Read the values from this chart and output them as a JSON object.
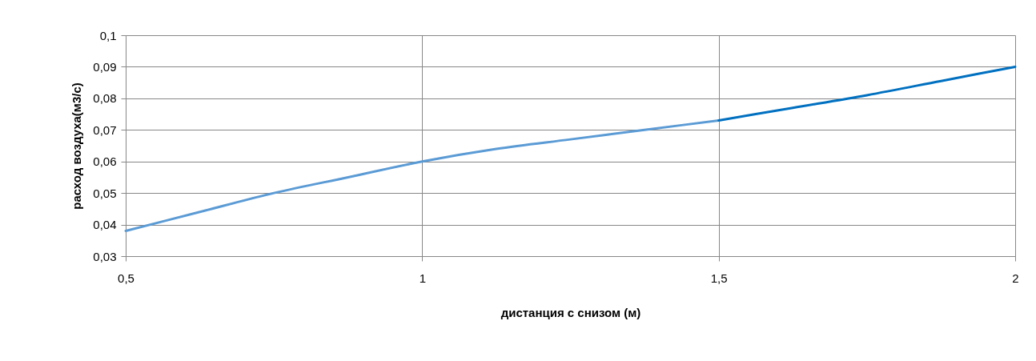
{
  "chart_data": {
    "type": "line",
    "xlabel": "дистанция с снизом (м)",
    "ylabel": "расход воздуха(м3/с)",
    "series": [
      {
        "color": "#5b9bd5",
        "x": [
          0.5,
          0.625,
          0.75,
          0.875,
          1,
          1.125,
          1.25,
          1.375,
          1.5
        ],
        "values": [
          0.038,
          0.044,
          0.05,
          0.055,
          0.06,
          0.064,
          0.067,
          0.07,
          0.073
        ]
      },
      {
        "color": "#0070c0",
        "x": [
          1.5,
          1.625,
          1.75,
          1.875,
          2
        ],
        "values": [
          0.073,
          0.077,
          0.081,
          0.0855,
          0.09
        ]
      }
    ],
    "xlim": [
      0.5,
      2
    ],
    "xticks": [
      {
        "value": 0.5,
        "label": "0,5"
      },
      1,
      {
        "value": 1.5,
        "label": "1,5"
      },
      2
    ],
    "ylim": [
      0.03,
      0.1
    ],
    "yticks": [
      {
        "value": 0.03,
        "label": "0,03"
      },
      {
        "value": 0.04,
        "label": "0,04"
      },
      {
        "value": 0.05,
        "label": "0,05"
      },
      {
        "value": 0.06,
        "label": "0,06"
      },
      {
        "value": 0.07,
        "label": "0,07"
      },
      {
        "value": 0.08,
        "label": "0,08"
      },
      {
        "value": 0.09,
        "label": "0,09"
      },
      {
        "value": 0.1,
        "label": "0,1"
      }
    ],
    "grid": true,
    "marker": "none",
    "line_style": "solid"
  }
}
